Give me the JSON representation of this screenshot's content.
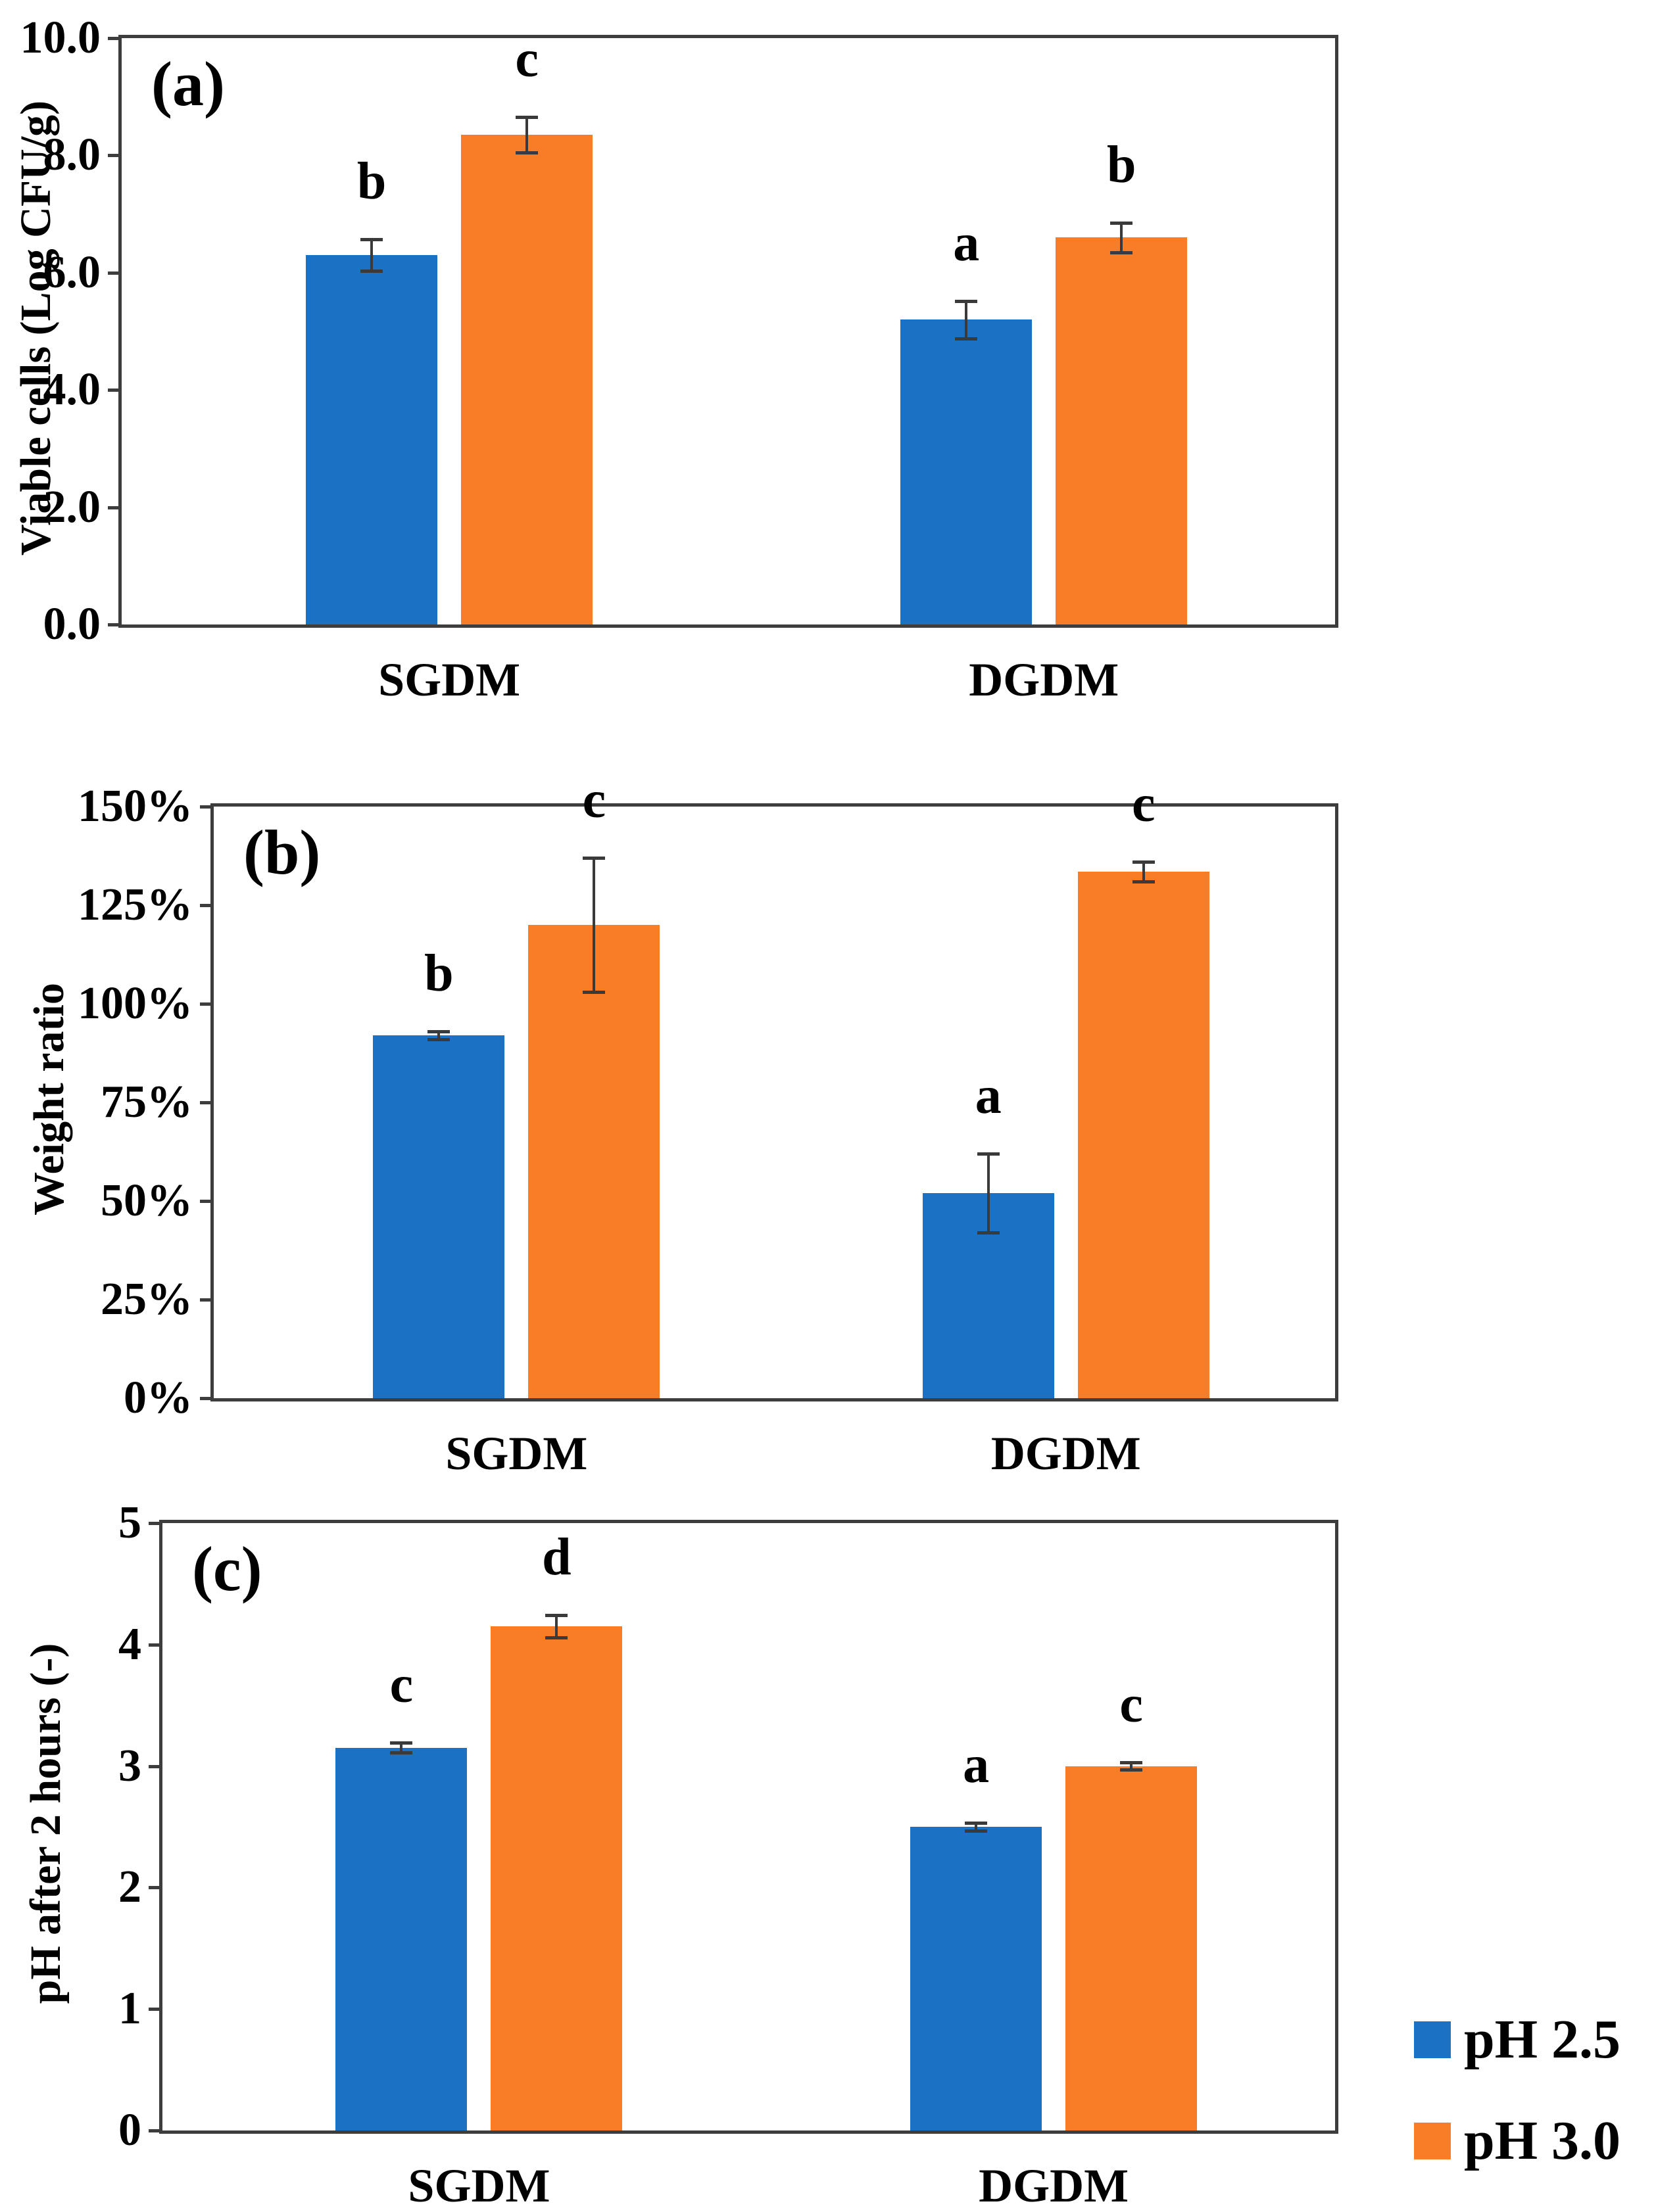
{
  "figure": {
    "colors": {
      "ph25_blue": "#1B72C4",
      "ph30_orange": "#F97D26",
      "axis": "#3d3d3d",
      "error_bar": "#3a3a3a",
      "text": "#000000"
    }
  },
  "legend": {
    "items": [
      {
        "label": "pH 2.5",
        "color": "#1B72C4"
      },
      {
        "label": "pH 3.0",
        "color": "#F97D26"
      }
    ]
  },
  "chart_data": [
    {
      "type": "bar",
      "panel_label": "(a)",
      "ylabel": "Viable cells (Log CFU/g)",
      "categories": [
        "SGDM",
        "DGDM"
      ],
      "series": [
        {
          "name": "pH 2.5",
          "color": "#1B72C4",
          "values": [
            6.3,
            5.2
          ],
          "errors": [
            0.27,
            0.32
          ],
          "sig_letters": [
            "b",
            "a"
          ]
        },
        {
          "name": "pH 3.0",
          "color": "#F97D26",
          "values": [
            8.35,
            6.6
          ],
          "errors": [
            0.3,
            0.25
          ],
          "sig_letters": [
            "c",
            "b"
          ]
        }
      ],
      "ylim": [
        0,
        10
      ],
      "yticks": [
        {
          "value": 0,
          "label": "0.0"
        },
        {
          "value": 2,
          "label": "2.0"
        },
        {
          "value": 4,
          "label": "4.0"
        },
        {
          "value": 6,
          "label": "6.0"
        },
        {
          "value": 8,
          "label": "8.0"
        },
        {
          "value": 10,
          "label": "10.0"
        }
      ],
      "grid": false,
      "legend_position": "figure-bottom-right"
    },
    {
      "type": "bar",
      "panel_label": "(b)",
      "ylabel": "Weight ratio",
      "categories": [
        "SGDM",
        "DGDM"
      ],
      "series": [
        {
          "name": "pH 2.5",
          "color": "#1B72C4",
          "values": [
            92,
            52
          ],
          "errors": [
            1,
            10
          ],
          "sig_letters": [
            "b",
            "a"
          ]
        },
        {
          "name": "pH 3.0",
          "color": "#F97D26",
          "values": [
            120,
            133.5
          ],
          "errors": [
            17,
            2.5
          ],
          "sig_letters": [
            "c",
            "c"
          ]
        }
      ],
      "ylim": [
        0,
        150
      ],
      "yticks": [
        {
          "value": 0,
          "label": "0%"
        },
        {
          "value": 25,
          "label": "25%"
        },
        {
          "value": 50,
          "label": "50%"
        },
        {
          "value": 75,
          "label": "75%"
        },
        {
          "value": 100,
          "label": "100%"
        },
        {
          "value": 125,
          "label": "125%"
        },
        {
          "value": 150,
          "label": "150%"
        }
      ],
      "grid": false,
      "legend_position": "figure-bottom-right"
    },
    {
      "type": "bar",
      "panel_label": "(c)",
      "ylabel": "pH after 2 hours (-)",
      "categories": [
        "SGDM",
        "DGDM"
      ],
      "series": [
        {
          "name": "pH 2.5",
          "color": "#1B72C4",
          "values": [
            3.15,
            2.5
          ],
          "errors": [
            0.04,
            0.03
          ],
          "sig_letters": [
            "c",
            "a"
          ]
        },
        {
          "name": "pH 3.0",
          "color": "#F97D26",
          "values": [
            4.15,
            3.0
          ],
          "errors": [
            0.09,
            0.03
          ],
          "sig_letters": [
            "d",
            "c"
          ]
        }
      ],
      "ylim": [
        0,
        5
      ],
      "yticks": [
        {
          "value": 0,
          "label": "0"
        },
        {
          "value": 1,
          "label": "1"
        },
        {
          "value": 2,
          "label": "2"
        },
        {
          "value": 3,
          "label": "3"
        },
        {
          "value": 4,
          "label": "4"
        },
        {
          "value": 5,
          "label": "5"
        }
      ],
      "grid": false,
      "legend_position": "figure-bottom-right"
    }
  ]
}
